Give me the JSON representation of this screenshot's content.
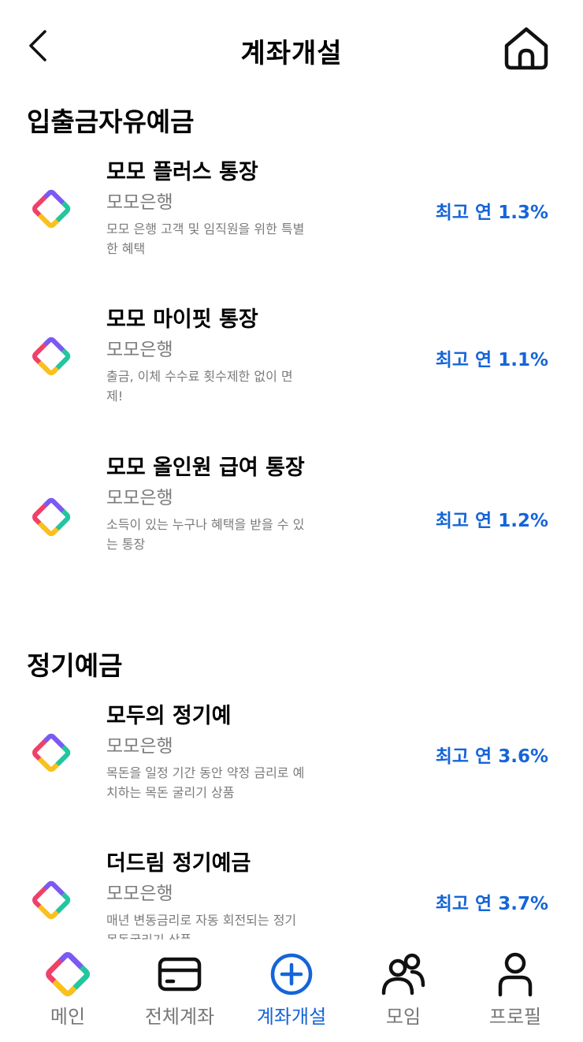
{
  "header": {
    "title": "계좌개설",
    "back_icon": "chevron-left-icon",
    "home_icon": "home-icon"
  },
  "sections": [
    {
      "title": "입출금자유예금",
      "products": [
        {
          "name": "모모 플러스 통장",
          "bank": "모모은행",
          "desc": "모모 은행 고객 및 임직원을 위한 특별한 혜택",
          "rate": "최고 연 1.3%"
        },
        {
          "name": "모모 마이핏 통장",
          "bank": "모모은행",
          "desc": "출금, 이체 수수료 횟수제한 없이 면제!",
          "rate": "최고 연 1.1%"
        },
        {
          "name": "모모 올인원 급여 통장",
          "bank": "모모은행",
          "desc": "소득이 있는 누구나 혜택을 받을 수 있는 통장",
          "rate": "최고 연 1.2%"
        }
      ]
    },
    {
      "title": "정기예금",
      "products": [
        {
          "name": "모두의 정기예",
          "bank": "모모은행",
          "desc": "목돈을 일정 기간 동안 약정 금리로 예치하는 목돈 굴리기 상품",
          "rate": "최고 연 3.6%"
        },
        {
          "name": "더드림 정기예금",
          "bank": "모모은행",
          "desc": "매년 변동금리로 자동 회전되는 정기 목돈굴리기 상품",
          "rate": "최고 연 3.7%"
        }
      ]
    }
  ],
  "nav": {
    "items": [
      {
        "label": "메인",
        "icon": "momo-logo-icon"
      },
      {
        "label": "전체계좌",
        "icon": "card-icon"
      },
      {
        "label": "계좌개설",
        "icon": "plus-circle-icon",
        "active": true
      },
      {
        "label": "모임",
        "icon": "group-icon"
      },
      {
        "label": "프로필",
        "icon": "person-icon"
      }
    ]
  },
  "colors": {
    "accent": "#1565d8",
    "muted": "#7b7b7b",
    "logo_purple": "#7a5af5",
    "logo_teal": "#1fc8a0",
    "logo_yellow": "#f8c21a",
    "logo_red": "#f0406a"
  }
}
